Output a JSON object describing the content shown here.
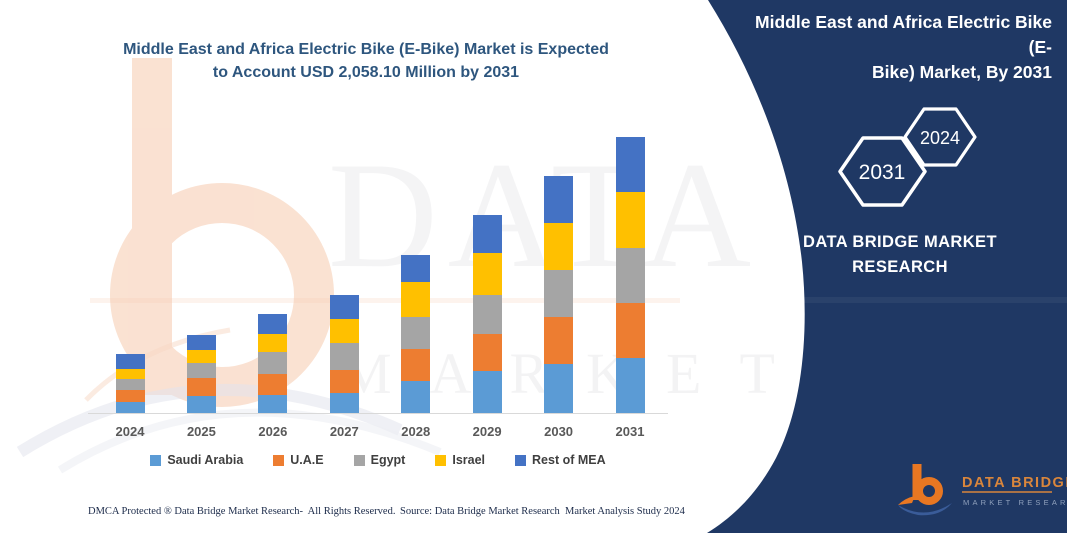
{
  "title": {
    "line1": "Middle East and Africa Electric Bike (E-Bike) Market is Expected",
    "line2": "to Account USD 2,058.10 Million by 2031"
  },
  "chart_data": {
    "type": "bar",
    "stacked": true,
    "title": "Middle East and Africa Electric Bike (E-Bike) Market is Expected to Account USD 2,058.10 Million by 2031",
    "unit": "USD Million",
    "categories": [
      "2024",
      "2025",
      "2026",
      "2027",
      "2028",
      "2029",
      "2030",
      "2031"
    ],
    "series": [
      {
        "name": "Saudi Arabia",
        "color": "#5B9BD5",
        "values": [
          82,
          127,
          137,
          149,
          235,
          310,
          365,
          410
        ]
      },
      {
        "name": "U.A.E",
        "color": "#ED7D31",
        "values": [
          87,
          134,
          151,
          169,
          244,
          279,
          347,
          410
        ]
      },
      {
        "name": "Egypt",
        "color": "#A5A5A5",
        "values": [
          82,
          112,
          166,
          203,
          236,
          287,
          350,
          410
        ]
      },
      {
        "name": "Israel",
        "color": "#FFC000",
        "values": [
          80,
          99,
          137,
          182,
          258,
          316,
          353,
          417
        ]
      },
      {
        "name": "Rest of MEA",
        "color": "#4472C4",
        "values": [
          112,
          112,
          144,
          179,
          206,
          280,
          354,
          411.1
        ]
      }
    ],
    "totals": [
      443,
      584,
      735,
      882,
      1179,
      1472,
      1769,
      2058.1
    ],
    "ylim": [
      0,
      2100
    ],
    "grid": false,
    "y_axis_visible": false,
    "legend_position": "bottom"
  },
  "panel": {
    "bg": "#1F3864",
    "title_line1": "Middle East and Africa Electric Bike (E-",
    "title_line2": "Bike) Market, By 2031",
    "hexagon_large_year": "2031",
    "hexagon_small_year": "2024",
    "brand_line1": "DATA BRIDGE MARKET",
    "brand_line2": "RESEARCH"
  },
  "logo": {
    "name": "DATA BRIDGE",
    "subtitle": "MARKET  RESEARCH",
    "accent": "#E87722"
  },
  "footer": {
    "left": "DMCA Protected ® Data Bridge Market Research-  All Rights Reserved.",
    "right": "Source: Data Bridge Market Research  Market Analysis Study 2024"
  },
  "watermark": {
    "row1": "DATA BRIDGE",
    "row2": "MARKET RESEARCH"
  }
}
